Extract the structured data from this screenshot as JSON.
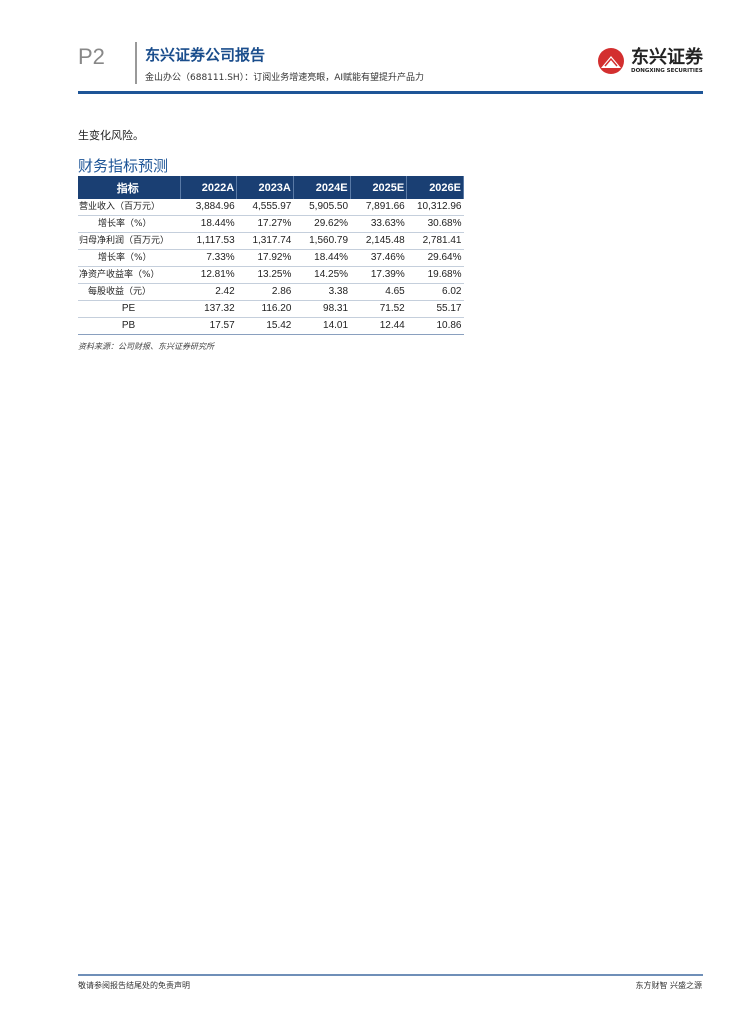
{
  "header": {
    "page": "P2",
    "title": "东兴证券公司报告",
    "subtitle": "金山办公（688111.SH）：订阅业务增速亮眼，AI赋能有望提升产品力",
    "logo_cn": "东兴证券",
    "logo_en": "DONGXING SECURITIES",
    "accent": "#1e5597",
    "logo_color": "#d32f2f"
  },
  "intro": "生变化风险。",
  "section_title": "财务指标预测",
  "table": {
    "headers": [
      "指标",
      "2022A",
      "2023A",
      "2024E",
      "2025E",
      "2026E"
    ],
    "rows": [
      {
        "label": "营业收入（百万元）",
        "values": [
          "3,884.96",
          "4,555.97",
          "5,905.50",
          "7,891.66",
          "10,312.96"
        ]
      },
      {
        "label": "增长率（%）",
        "values": [
          "18.44%",
          "17.27%",
          "29.62%",
          "33.63%",
          "30.68%"
        ]
      },
      {
        "label": "归母净利润（百万元）",
        "values": [
          "1,117.53",
          "1,317.74",
          "1,560.79",
          "2,145.48",
          "2,781.41"
        ]
      },
      {
        "label": "增长率（%）",
        "values": [
          "7.33%",
          "17.92%",
          "18.44%",
          "37.46%",
          "29.64%"
        ]
      },
      {
        "label": "净资产收益率（%）",
        "values": [
          "12.81%",
          "13.25%",
          "14.25%",
          "17.39%",
          "19.68%"
        ]
      },
      {
        "label": "每股收益（元）",
        "values": [
          "2.42",
          "2.86",
          "3.38",
          "4.65",
          "6.02"
        ]
      },
      {
        "label": "PE",
        "values": [
          "137.32",
          "116.20",
          "98.31",
          "71.52",
          "55.17"
        ]
      },
      {
        "label": "PB",
        "values": [
          "17.57",
          "15.42",
          "14.01",
          "12.44",
          "10.86"
        ]
      }
    ]
  },
  "source": "资料来源：公司财报、东兴证券研究所",
  "footer": {
    "left": "敬请参阅报告结尾处的免责声明",
    "right": "东方财智 兴盛之源"
  }
}
